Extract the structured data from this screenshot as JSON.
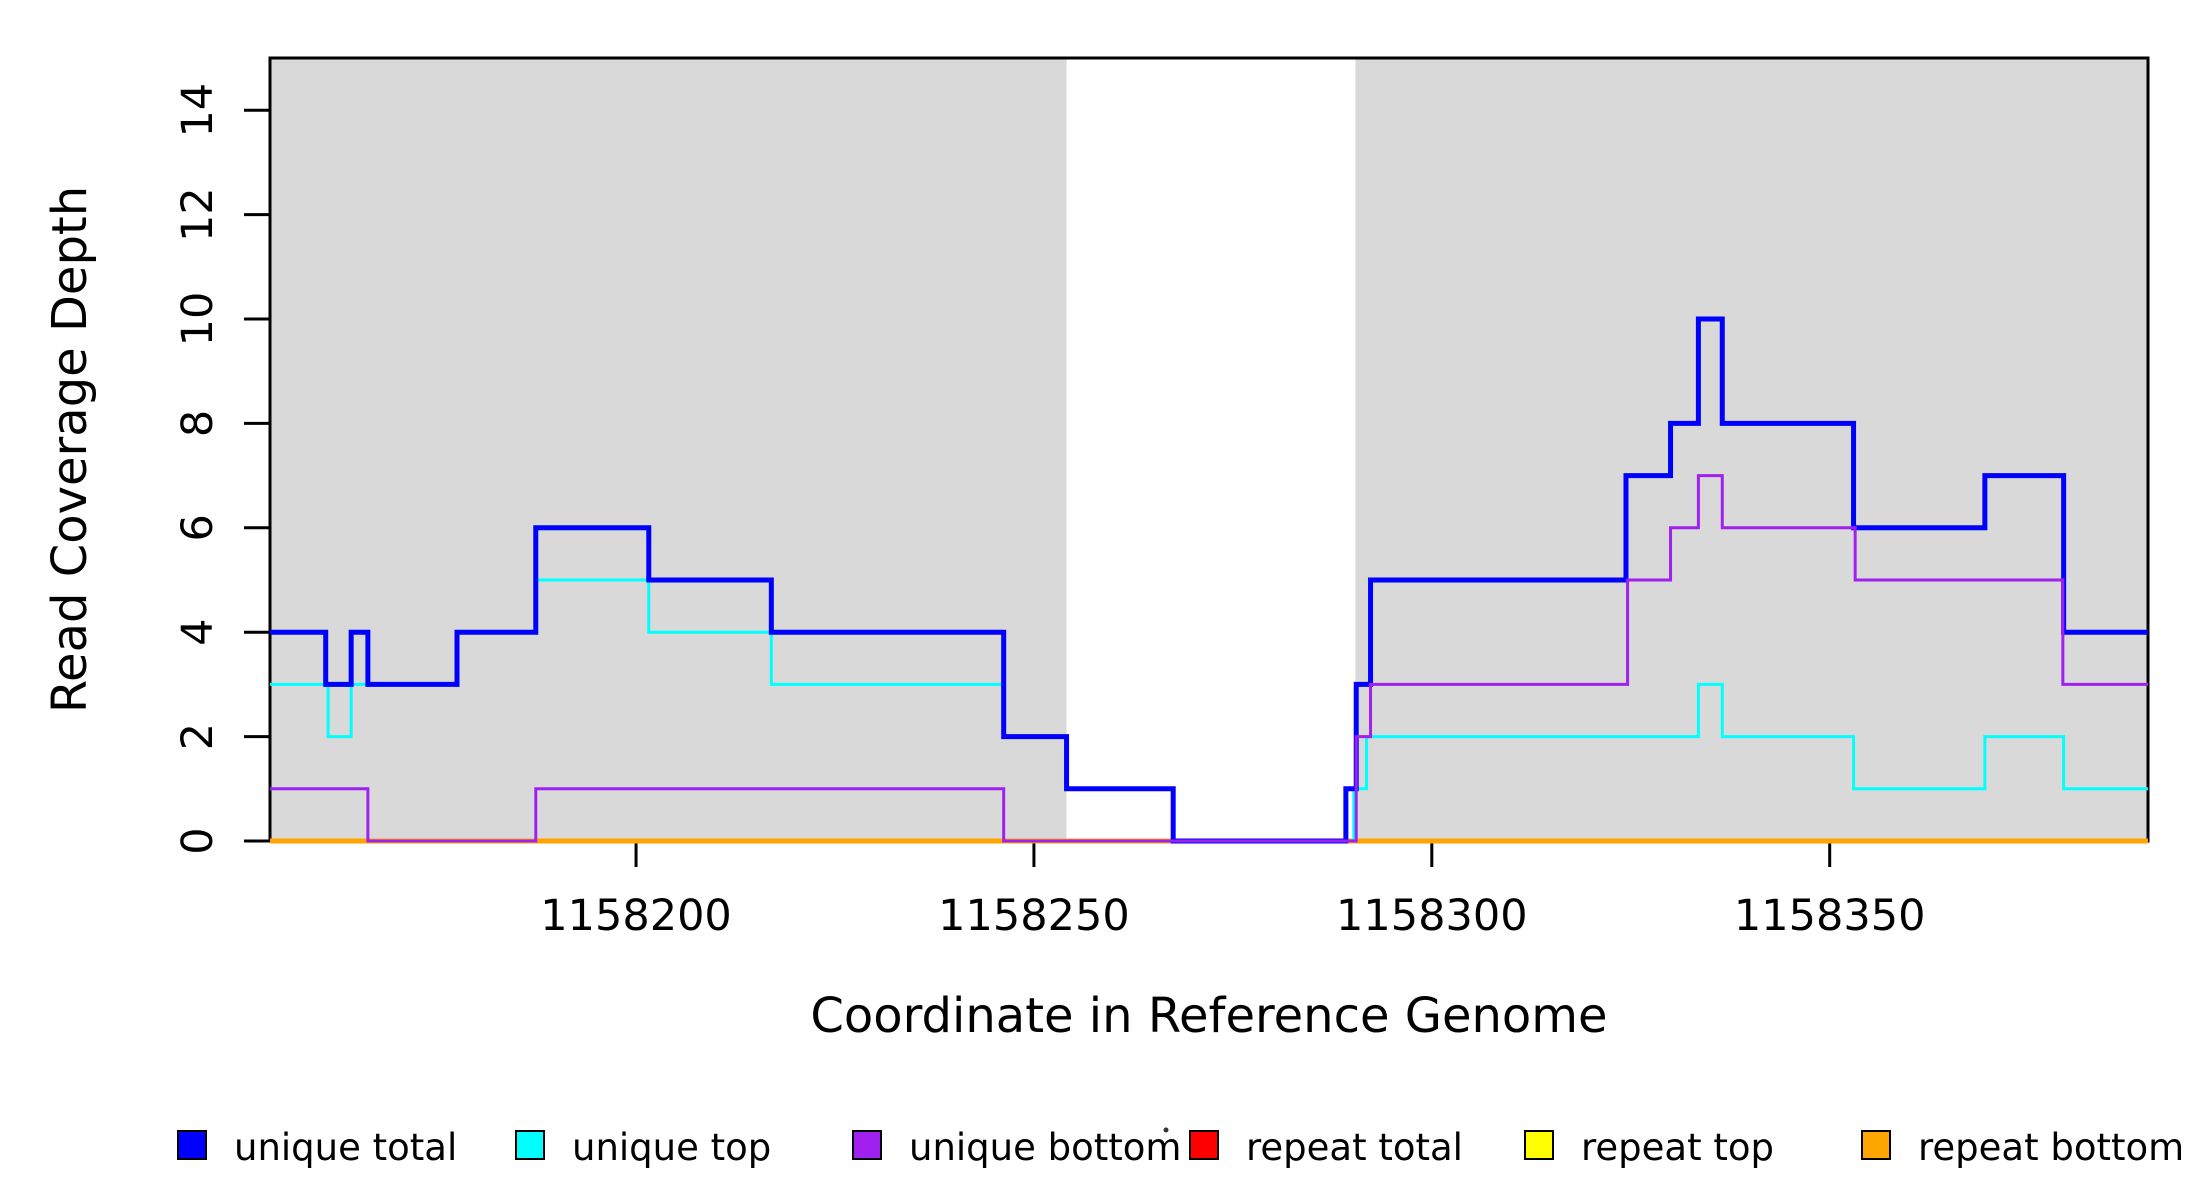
{
  "figure": {
    "background": "#FFFFFF",
    "band_color": "#D9D9D9",
    "box_color": "#000000"
  },
  "axes": {
    "x": {
      "title": "Coordinate in Reference Genome",
      "ticks": [
        1158200,
        1158250,
        1158300,
        1158350
      ],
      "tick_labels": [
        "1158200",
        "1158250",
        "1158300",
        "1158350"
      ]
    },
    "y": {
      "title": "Read Coverage Depth",
      "ticks": [
        0,
        2,
        4,
        6,
        8,
        10,
        12,
        14
      ],
      "tick_labels": [
        "0",
        "2",
        "4",
        "6",
        "8",
        "10",
        "12",
        "14"
      ]
    }
  },
  "legend": {
    "items": [
      {
        "label": "unique total",
        "color": "#0000FF"
      },
      {
        "label": "unique top",
        "color": "#00FFFF"
      },
      {
        "label": "unique bottom",
        "color": "#A020F0"
      },
      {
        "label": "repeat total",
        "color": "#FF0000"
      },
      {
        "label": "repeat top",
        "color": "#FFFF00"
      },
      {
        "label": "repeat bottom",
        "color": "#FFA500"
      }
    ]
  },
  "chart_data": {
    "type": "line",
    "step": true,
    "title": "",
    "xlabel": "Coordinate in Reference Genome",
    "ylabel": "Read Coverage Depth",
    "xlim": [
      1158154,
      1158390
    ],
    "ylim": [
      0,
      15
    ],
    "grid": false,
    "legend_position": "bottom",
    "bands": [
      [
        1158154,
        1158254.1
      ],
      [
        1158290.4,
        1158390
      ]
    ],
    "draw_order": [
      "repeat total",
      "repeat top",
      "repeat bottom",
      "unique top",
      "unique total",
      "unique bottom"
    ],
    "series": [
      {
        "name": "unique total",
        "color": "#0000FF",
        "width": 5,
        "points": [
          [
            1158154,
            4
          ],
          [
            1158161,
            3
          ],
          [
            1158164.2,
            4
          ],
          [
            1158166.3,
            3
          ],
          [
            1158177.5,
            4
          ],
          [
            1158187.4,
            6
          ],
          [
            1158201.6,
            5
          ],
          [
            1158217,
            4
          ],
          [
            1158246.2,
            2
          ],
          [
            1158254.1,
            1
          ],
          [
            1158267.5,
            0
          ],
          [
            1158289.2,
            1
          ],
          [
            1158290.5,
            3
          ],
          [
            1158292.3,
            5
          ],
          [
            1158324.4,
            7
          ],
          [
            1158330,
            8
          ],
          [
            1158333.5,
            10
          ],
          [
            1158336.5,
            8
          ],
          [
            1158353,
            6
          ],
          [
            1158369.5,
            7
          ],
          [
            1158379.4,
            4
          ],
          [
            1158390,
            4
          ]
        ]
      },
      {
        "name": "unique top",
        "color": "#00FFFF",
        "width": 3,
        "points": [
          [
            1158154,
            3
          ],
          [
            1158161.3,
            2
          ],
          [
            1158164.2,
            3
          ],
          [
            1158177.5,
            4
          ],
          [
            1158187.4,
            5
          ],
          [
            1158201.6,
            4
          ],
          [
            1158217,
            3
          ],
          [
            1158246.2,
            2
          ],
          [
            1158254.1,
            1
          ],
          [
            1158267.5,
            0
          ],
          [
            1158290.2,
            1
          ],
          [
            1158291.8,
            2
          ],
          [
            1158333.5,
            3
          ],
          [
            1158336.5,
            2
          ],
          [
            1158353,
            1
          ],
          [
            1158369.5,
            2
          ],
          [
            1158379.4,
            1
          ],
          [
            1158390,
            1
          ]
        ]
      },
      {
        "name": "unique bottom",
        "color": "#A020F0",
        "width": 3,
        "points": [
          [
            1158154,
            1
          ],
          [
            1158166.3,
            0
          ],
          [
            1158187.4,
            1
          ],
          [
            1158246.2,
            0
          ],
          [
            1158290.5,
            2
          ],
          [
            1158292.3,
            3
          ],
          [
            1158324.6,
            5
          ],
          [
            1158330,
            6
          ],
          [
            1158333.5,
            7
          ],
          [
            1158336.5,
            6
          ],
          [
            1158353.2,
            5
          ],
          [
            1158379.3,
            3
          ],
          [
            1158390,
            3
          ]
        ]
      },
      {
        "name": "repeat total",
        "color": "#FF0000",
        "width": 3,
        "points": [
          [
            1158154,
            0
          ],
          [
            1158390,
            0
          ]
        ]
      },
      {
        "name": "repeat top",
        "color": "#FFFF00",
        "width": 3,
        "points": [
          [
            1158154,
            0
          ],
          [
            1158390,
            0
          ]
        ]
      },
      {
        "name": "repeat bottom",
        "color": "#FFA500",
        "width": 5,
        "points": [
          [
            1158154,
            0
          ],
          [
            1158390,
            0
          ]
        ]
      }
    ]
  }
}
